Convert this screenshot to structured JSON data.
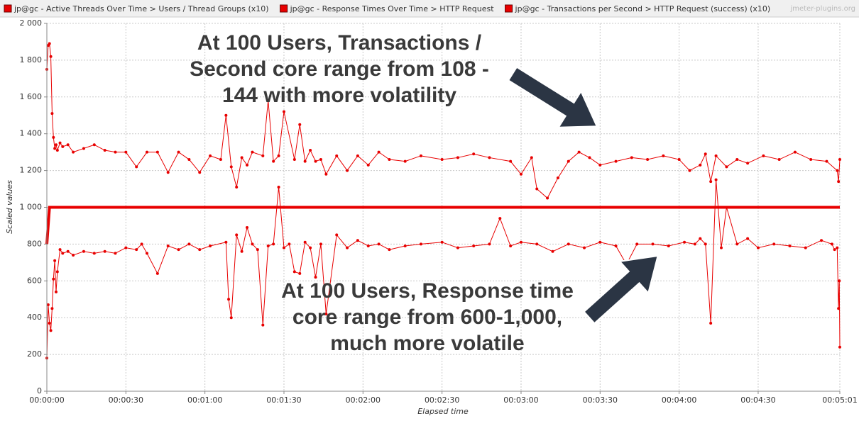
{
  "chart_data": {
    "type": "line",
    "watermark": "jmeter-plugins.org",
    "xlabel": "Elapsed time",
    "ylabel": "Scaled values",
    "xlim": [
      0,
      301
    ],
    "ylim": [
      0,
      2000
    ],
    "grid": true,
    "xticks": [
      {
        "value": 0,
        "label": "00:00:00"
      },
      {
        "value": 30,
        "label": "00:00:30"
      },
      {
        "value": 60,
        "label": "00:01:00"
      },
      {
        "value": 90,
        "label": "00:01:30"
      },
      {
        "value": 120,
        "label": "00:02:00"
      },
      {
        "value": 150,
        "label": "00:02:30"
      },
      {
        "value": 180,
        "label": "00:03:00"
      },
      {
        "value": 210,
        "label": "00:03:30"
      },
      {
        "value": 240,
        "label": "00:04:00"
      },
      {
        "value": 270,
        "label": "00:04:30"
      },
      {
        "value": 301,
        "label": "00:05:01"
      }
    ],
    "yticks": [
      0,
      200,
      400,
      600,
      800,
      {
        "value": 1000,
        "label": "1 000"
      },
      {
        "value": 1200,
        "label": "1 200"
      },
      {
        "value": 1400,
        "label": "1 400"
      },
      {
        "value": 1600,
        "label": "1 600"
      },
      {
        "value": 1800,
        "label": "1 800"
      },
      {
        "value": 2000,
        "label": "2 000"
      }
    ],
    "annotations": [
      [
        "At 100 Users, Transactions /",
        "Second core range from 108 -",
        "144 with more volatility"
      ],
      [
        "At 100 Users, Response time",
        "core range from 600-1,000,",
        "much more volatile"
      ]
    ],
    "series": [
      {
        "name": "jp@gc - Active Threads Over Time > Users / Thread Groups (x10)",
        "color": "#e80000",
        "x": [
          0,
          1,
          301
        ],
        "values": [
          800,
          1000,
          1000
        ]
      },
      {
        "name": "jp@gc - Response Times Over Time > HTTP Request",
        "color": "#e80000",
        "x": [
          0,
          0.5,
          1,
          1.5,
          2,
          2.5,
          3,
          3.5,
          4,
          5,
          6,
          8,
          10,
          14,
          18,
          22,
          26,
          30,
          34,
          36,
          38,
          42,
          46,
          50,
          54,
          58,
          62,
          68,
          69,
          70,
          72,
          74,
          76,
          78,
          80,
          82,
          84,
          86,
          88,
          90,
          92,
          94,
          96,
          98,
          100,
          102,
          104,
          106,
          110,
          114,
          118,
          122,
          126,
          130,
          136,
          142,
          150,
          156,
          162,
          168,
          172,
          176,
          180,
          186,
          192,
          198,
          204,
          210,
          216,
          220,
          224,
          230,
          236,
          242,
          246,
          248,
          250,
          252,
          254,
          256,
          258,
          262,
          266,
          270,
          276,
          282,
          288,
          294,
          298,
          299,
          300,
          300.5,
          300.8,
          301
        ],
        "values": [
          180,
          470,
          370,
          330,
          450,
          610,
          710,
          540,
          650,
          770,
          750,
          760,
          740,
          760,
          750,
          760,
          750,
          780,
          770,
          800,
          750,
          640,
          790,
          770,
          800,
          770,
          790,
          810,
          500,
          400,
          850,
          760,
          890,
          800,
          770,
          360,
          790,
          800,
          1110,
          780,
          800,
          650,
          640,
          810,
          780,
          620,
          800,
          420,
          850,
          780,
          820,
          790,
          800,
          770,
          790,
          800,
          810,
          780,
          790,
          800,
          940,
          790,
          810,
          800,
          760,
          800,
          780,
          810,
          790,
          690,
          800,
          800,
          790,
          810,
          800,
          830,
          800,
          370,
          1150,
          780,
          1000,
          800,
          830,
          780,
          800,
          790,
          780,
          820,
          800,
          770,
          780,
          450,
          600,
          240
        ]
      },
      {
        "name": "jp@gc - Transactions per Second > HTTP Request (success) (x10)",
        "color": "#e80000",
        "x": [
          0,
          0.5,
          1,
          1.5,
          2,
          2.5,
          3,
          3.5,
          4,
          5,
          6,
          8,
          10,
          14,
          18,
          22,
          26,
          30,
          34,
          38,
          42,
          46,
          50,
          54,
          58,
          62,
          66,
          68,
          70,
          72,
          74,
          76,
          78,
          82,
          84,
          86,
          88,
          90,
          94,
          96,
          98,
          100,
          102,
          104,
          106,
          110,
          114,
          118,
          122,
          126,
          130,
          136,
          142,
          150,
          156,
          162,
          168,
          176,
          180,
          184,
          186,
          190,
          194,
          198,
          202,
          206,
          210,
          216,
          222,
          228,
          234,
          240,
          244,
          248,
          250,
          252,
          254,
          258,
          262,
          266,
          272,
          278,
          284,
          290,
          296,
          300,
          300.5,
          301
        ],
        "values": [
          1750,
          1880,
          1890,
          1820,
          1510,
          1380,
          1320,
          1340,
          1310,
          1350,
          1330,
          1340,
          1300,
          1320,
          1340,
          1310,
          1300,
          1300,
          1220,
          1300,
          1300,
          1190,
          1300,
          1260,
          1190,
          1280,
          1260,
          1500,
          1220,
          1110,
          1270,
          1230,
          1300,
          1280,
          1580,
          1250,
          1280,
          1520,
          1260,
          1450,
          1250,
          1310,
          1250,
          1260,
          1180,
          1280,
          1200,
          1280,
          1230,
          1300,
          1260,
          1250,
          1280,
          1260,
          1270,
          1290,
          1270,
          1250,
          1180,
          1270,
          1100,
          1050,
          1160,
          1250,
          1300,
          1270,
          1230,
          1250,
          1270,
          1260,
          1280,
          1260,
          1200,
          1230,
          1290,
          1140,
          1280,
          1220,
          1260,
          1240,
          1280,
          1260,
          1300,
          1260,
          1250,
          1200,
          1140,
          1260
        ]
      }
    ]
  }
}
